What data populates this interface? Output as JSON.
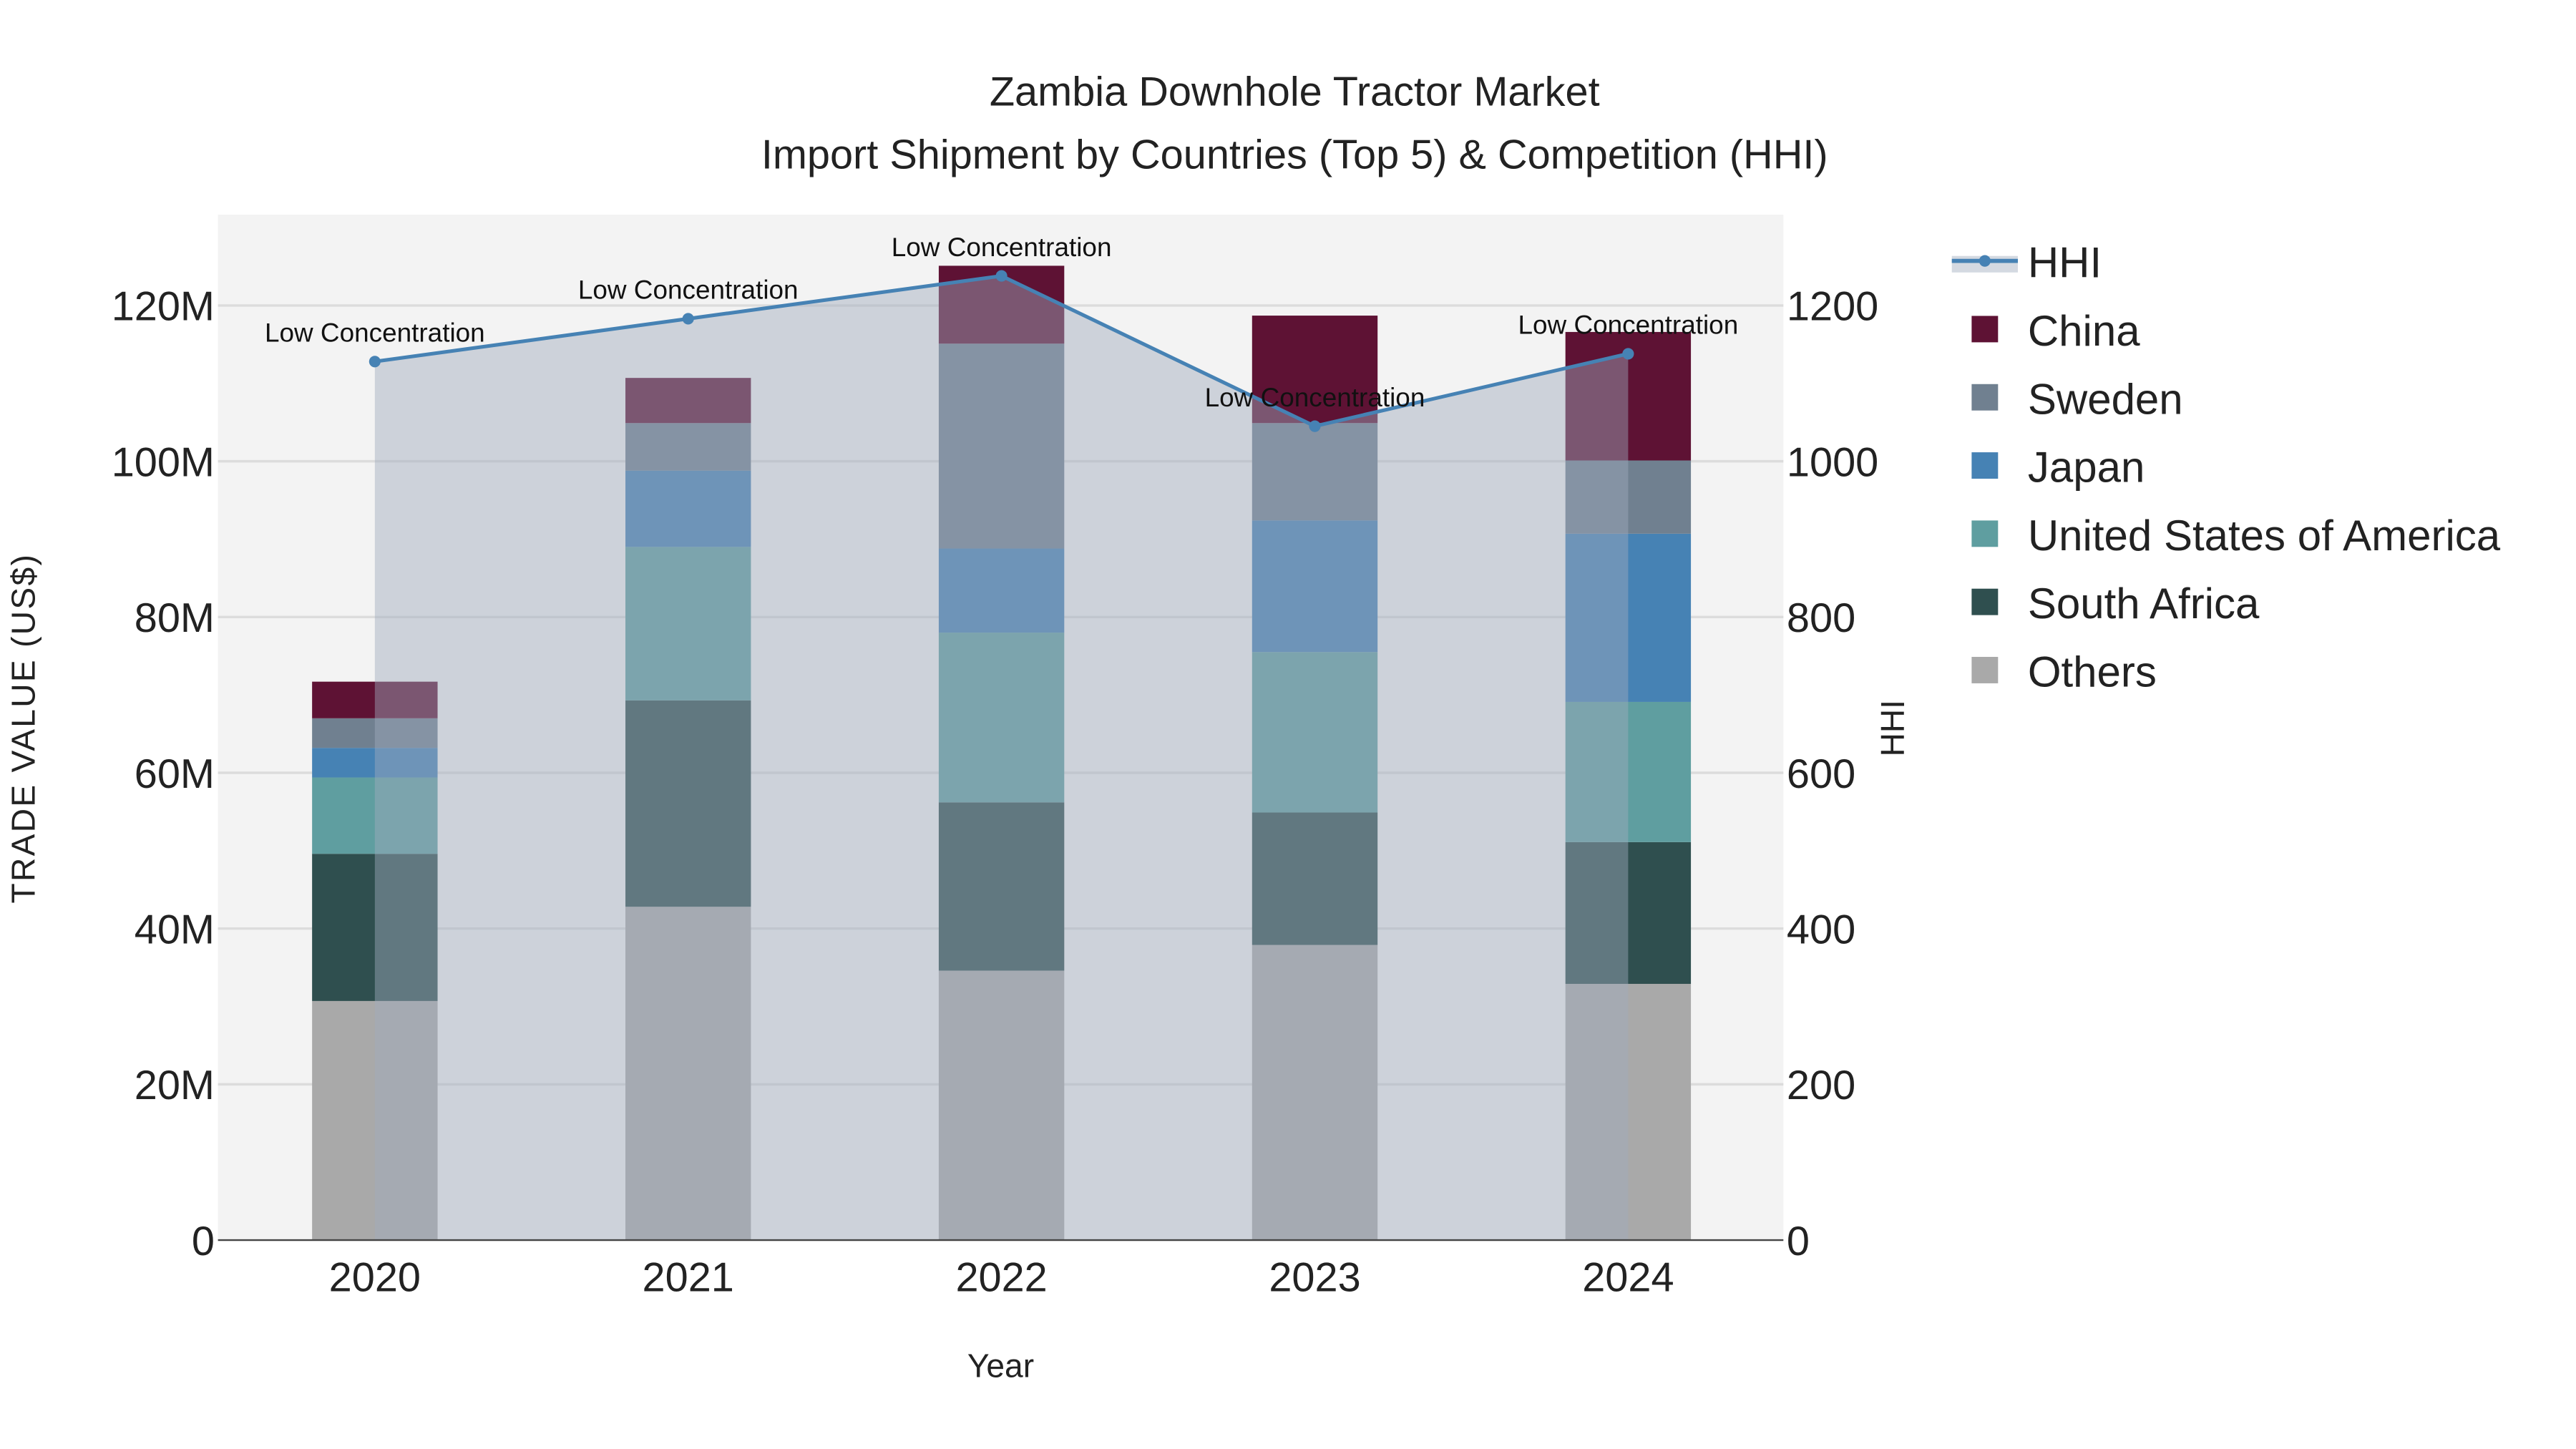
{
  "chart_data": {
    "type": "bar",
    "title": "Zambia Downhole Tractor Market",
    "subtitle": "Import Shipment by Countries (Top 5) & Competition (HHI)",
    "xlabel": "Year",
    "ylabel": "TRADE VALUE (US$)",
    "y2label": "HHI",
    "categories": [
      "2020",
      "2021",
      "2022",
      "2023",
      "2024"
    ],
    "ylim": [
      0,
      131
    ],
    "y2lim": [
      0,
      1310
    ],
    "yticks": [
      0,
      20,
      40,
      60,
      80,
      100,
      120
    ],
    "ytick_labels": [
      "0",
      "20M",
      "40M",
      "60M",
      "80M",
      "100M",
      "120M"
    ],
    "y2ticks": [
      0,
      200,
      400,
      600,
      800,
      1000,
      1200
    ],
    "y2tick_labels": [
      "0",
      "200",
      "400",
      "600",
      "800",
      "1000",
      "1200"
    ],
    "value_unit": "million US$",
    "series": [
      {
        "name": "Others",
        "color": "#a9a9a9",
        "values": [
          30.7,
          42.8,
          34.6,
          37.9,
          32.9
        ]
      },
      {
        "name": "South Africa",
        "color": "#2f4f4f",
        "values": [
          18.9,
          26.5,
          21.6,
          17.0,
          18.2
        ]
      },
      {
        "name": "United States of America",
        "color": "#5f9ea0",
        "values": [
          9.8,
          19.7,
          21.8,
          20.6,
          18.0
        ]
      },
      {
        "name": "Japan",
        "color": "#4682b4",
        "values": [
          3.8,
          9.8,
          10.8,
          16.9,
          21.6
        ]
      },
      {
        "name": "Sweden",
        "color": "#708090",
        "values": [
          3.8,
          6.1,
          26.3,
          12.5,
          9.4
        ]
      },
      {
        "name": "China",
        "color": "#5e1234",
        "values": [
          4.7,
          5.8,
          10.0,
          13.8,
          16.5
        ]
      }
    ],
    "hhi": {
      "name": "HHI",
      "color": "#4682b4",
      "values": [
        1128,
        1183,
        1238,
        1045,
        1138
      ],
      "annotations": [
        "Low Concentration",
        "Low Concentration",
        "Low Concentration",
        "Low Concentration",
        "Low Concentration"
      ]
    },
    "legend_order": [
      "HHI",
      "China",
      "Sweden",
      "Japan",
      "United States of America",
      "South Africa",
      "Others"
    ],
    "legend_position": "right",
    "grid": true
  }
}
